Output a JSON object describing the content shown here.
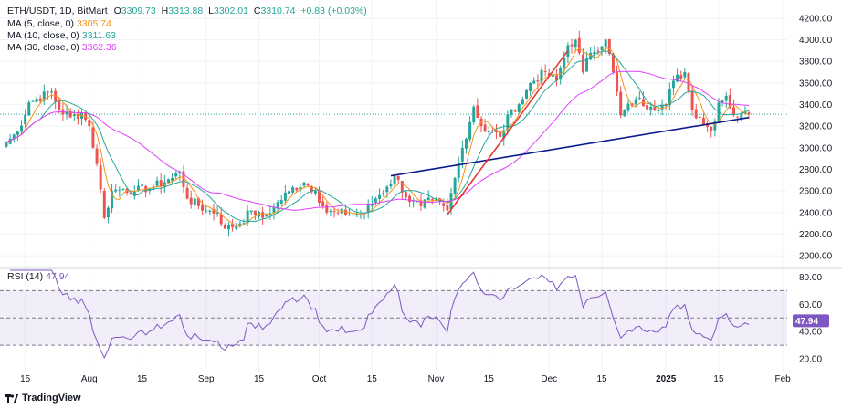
{
  "header": {
    "symbol": "ETH/USDT, 1D, BitMart",
    "o_label": "O",
    "o_value": "3309.73",
    "h_label": "H",
    "h_value": "3313.88",
    "l_label": "L",
    "l_value": "3302.01",
    "c_label": "C",
    "c_value": "3310.74",
    "change": "+0.83 (+0.03%)"
  },
  "indicators": [
    {
      "label": "MA (5, close, 0)",
      "value": "3305.74",
      "color": "#f7931a"
    },
    {
      "label": "MA (10, close, 0)",
      "value": "3311.63",
      "color": "#26a69a"
    },
    {
      "label": "MA (30, close, 0)",
      "value": "3362.36",
      "color": "#e040fb"
    }
  ],
  "rsi": {
    "label": "RSI (14)",
    "value": "47.94",
    "badge": "47.94",
    "color": "#7e57c2"
  },
  "brand": "TradingView",
  "colors": {
    "up": "#26a69a",
    "down": "#ef5350",
    "ma5": "#f7931a",
    "ma10": "#26a69a",
    "ma30": "#e040fb",
    "rsi": "#7e57c2",
    "trend_blue": "#0d1b8c",
    "trend_red": "#e53935"
  },
  "chart_data": [
    {
      "type": "candlestick",
      "title": "ETH/USDT, 1D, BitMart",
      "ylim": [
        1900,
        4300
      ],
      "y_ticks": [
        "4200.00",
        "4000.00",
        "3800.00",
        "3600.00",
        "3400.00",
        "3200.00",
        "3000.00",
        "2800.00",
        "2600.00",
        "2400.00",
        "2200.00",
        "2000.00"
      ],
      "y_tick_values": [
        4200,
        4000,
        3800,
        3600,
        3400,
        3200,
        3000,
        2800,
        2600,
        2400,
        2200,
        2000
      ],
      "x_ticks": [
        "15",
        "Aug",
        "15",
        "Sep",
        "15",
        "Oct",
        "15",
        "Nov",
        "15",
        "Dec",
        "15",
        "2025",
        "15",
        "Feb"
      ],
      "x_tick_dates": [
        "2024-07-15",
        "2024-08-01",
        "2024-08-15",
        "2024-09-01",
        "2024-09-15",
        "2024-10-01",
        "2024-10-15",
        "2024-11-01",
        "2024-11-15",
        "2024-12-01",
        "2024-12-15",
        "2025-01-01",
        "2025-01-15",
        "2025-02-01"
      ],
      "start_date": "2024-07-10",
      "close_keypoints": [
        [
          "2024-07-10",
          3050
        ],
        [
          "2024-07-13",
          3150
        ],
        [
          "2024-07-16",
          3420
        ],
        [
          "2024-07-22",
          3520
        ],
        [
          "2024-07-24",
          3350
        ],
        [
          "2024-07-27",
          3280
        ],
        [
          "2024-07-30",
          3320
        ],
        [
          "2024-08-01",
          3200
        ],
        [
          "2024-08-03",
          2850
        ],
        [
          "2024-08-05",
          2350
        ],
        [
          "2024-08-07",
          2600
        ],
        [
          "2024-08-10",
          2620
        ],
        [
          "2024-08-13",
          2600
        ],
        [
          "2024-08-18",
          2640
        ],
        [
          "2024-08-23",
          2720
        ],
        [
          "2024-08-25",
          2780
        ],
        [
          "2024-08-27",
          2530
        ],
        [
          "2024-09-01",
          2420
        ],
        [
          "2024-09-04",
          2400
        ],
        [
          "2024-09-06",
          2250
        ],
        [
          "2024-09-10",
          2300
        ],
        [
          "2024-09-13",
          2420
        ],
        [
          "2024-09-16",
          2350
        ],
        [
          "2024-09-19",
          2450
        ],
        [
          "2024-09-23",
          2600
        ],
        [
          "2024-09-27",
          2680
        ],
        [
          "2024-09-30",
          2600
        ],
        [
          "2024-10-03",
          2400
        ],
        [
          "2024-10-06",
          2400
        ],
        [
          "2024-10-10",
          2380
        ],
        [
          "2024-10-13",
          2400
        ],
        [
          "2024-10-16",
          2530
        ],
        [
          "2024-10-19",
          2640
        ],
        [
          "2024-10-21",
          2740
        ],
        [
          "2024-10-25",
          2500
        ],
        [
          "2024-10-28",
          2460
        ],
        [
          "2024-10-31",
          2520
        ],
        [
          "2024-11-03",
          2460
        ],
        [
          "2024-11-04",
          2420
        ],
        [
          "2024-11-06",
          2720
        ],
        [
          "2024-11-08",
          3000
        ],
        [
          "2024-11-11",
          3380
        ],
        [
          "2024-11-13",
          3200
        ],
        [
          "2024-11-18",
          3100
        ],
        [
          "2024-11-21",
          3350
        ],
        [
          "2024-11-24",
          3450
        ],
        [
          "2024-11-26",
          3600
        ],
        [
          "2024-11-30",
          3700
        ],
        [
          "2024-12-03",
          3620
        ],
        [
          "2024-12-06",
          3950
        ],
        [
          "2024-12-08",
          4000
        ],
        [
          "2024-12-10",
          3700
        ],
        [
          "2024-12-12",
          3880
        ],
        [
          "2024-12-16",
          4000
        ],
        [
          "2024-12-18",
          3700
        ],
        [
          "2024-12-20",
          3300
        ],
        [
          "2024-12-24",
          3450
        ],
        [
          "2024-12-28",
          3380
        ],
        [
          "2025-01-01",
          3400
        ],
        [
          "2025-01-03",
          3620
        ],
        [
          "2025-01-06",
          3700
        ],
        [
          "2025-01-08",
          3350
        ],
        [
          "2025-01-10",
          3280
        ],
        [
          "2025-01-13",
          3150
        ],
        [
          "2025-01-15",
          3420
        ],
        [
          "2025-01-17",
          3480
        ],
        [
          "2025-01-19",
          3300
        ],
        [
          "2025-01-21",
          3300
        ],
        [
          "2025-01-23",
          3310
        ]
      ],
      "series": [
        {
          "name": "MA (5, close, 0)",
          "last": 3305.74
        },
        {
          "name": "MA (10, close, 0)",
          "last": 3311.63
        },
        {
          "name": "MA (30, close, 0)",
          "last": 3362.36
        }
      ],
      "trendlines": [
        {
          "color": "blue",
          "from": [
            "2024-10-20",
            2740
          ],
          "to": [
            "2025-01-23",
            3280
          ]
        },
        {
          "color": "red",
          "from": [
            "2024-11-04",
            2380
          ],
          "to": [
            "2024-12-06",
            3900
          ]
        }
      ]
    },
    {
      "type": "line",
      "title": "RSI (14)",
      "ylim": [
        10,
        85
      ],
      "y_ticks": [
        "80.00",
        "60.00",
        "40.00",
        "20.00"
      ],
      "y_tick_values": [
        80,
        60,
        40,
        20
      ],
      "bands": {
        "upper": 70,
        "mid": 50,
        "lower": 30
      },
      "last": 47.94
    }
  ]
}
